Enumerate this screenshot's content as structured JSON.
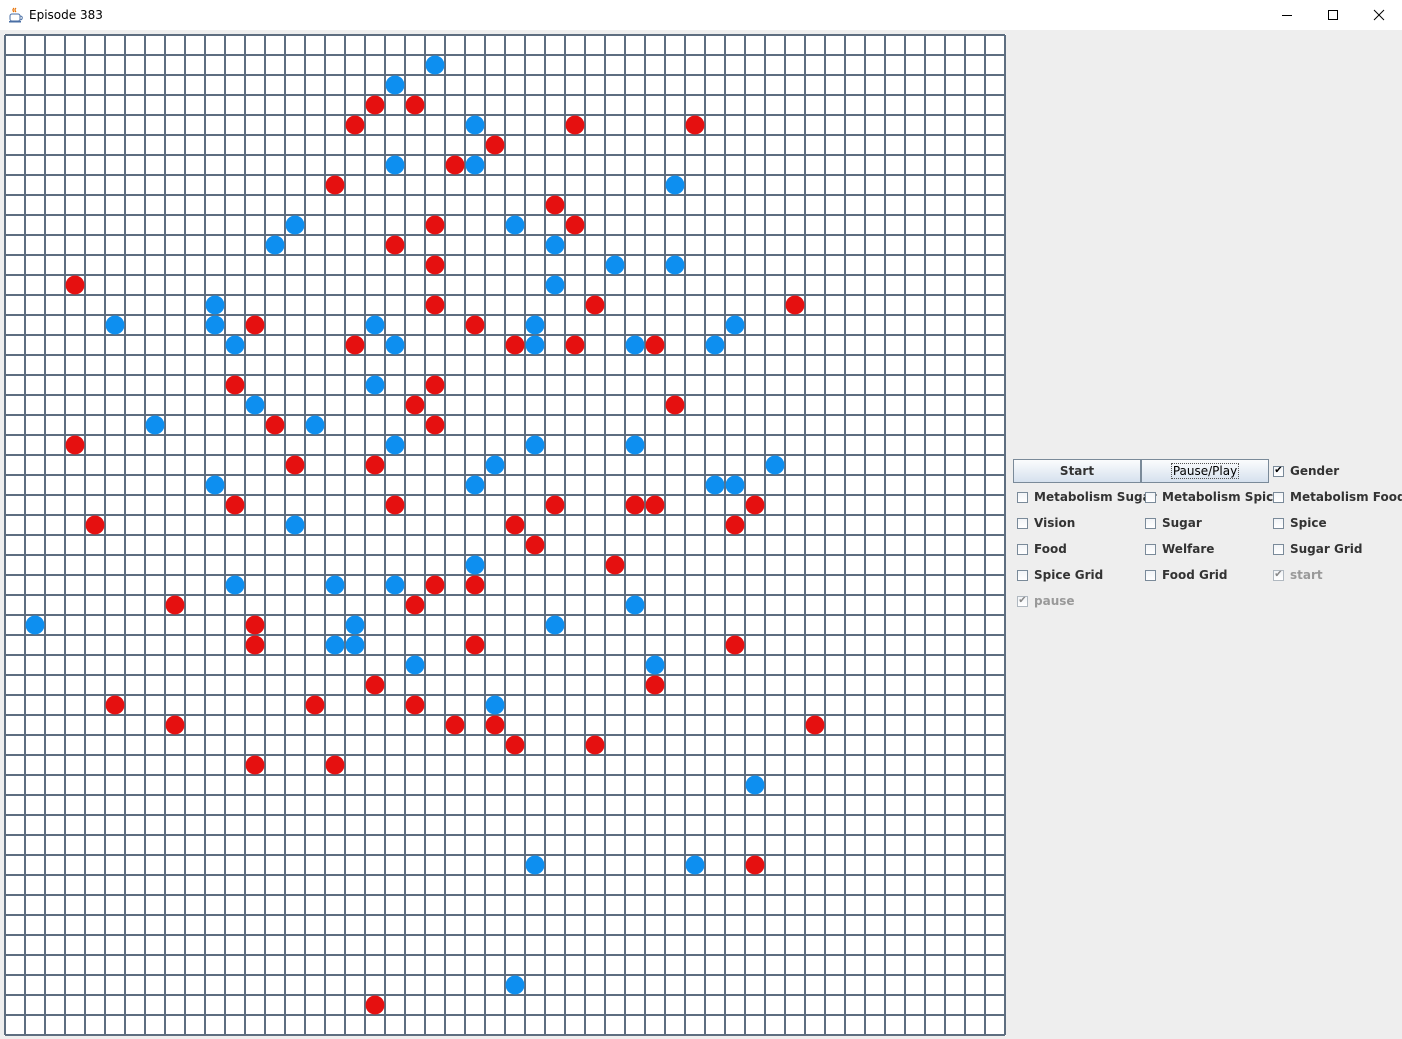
{
  "window": {
    "title": "Episode 383",
    "icon": "java-cup-icon",
    "controls": [
      "minimize-icon",
      "maximize-icon",
      "close-icon"
    ]
  },
  "grid": {
    "rows": 50,
    "cols": 50,
    "colors": {
      "background": "#ffffff",
      "lines": "#5e6e80",
      "agent_blue": "#0d8ff0",
      "agent_red": "#e51010"
    },
    "agents": [
      {
        "c": 21,
        "r": 1,
        "color": "blue"
      },
      {
        "c": 19,
        "r": 2,
        "color": "blue"
      },
      {
        "c": 18,
        "r": 3,
        "color": "red"
      },
      {
        "c": 20,
        "r": 3,
        "color": "red"
      },
      {
        "c": 17,
        "r": 4,
        "color": "red"
      },
      {
        "c": 23,
        "r": 4,
        "color": "blue"
      },
      {
        "c": 28,
        "r": 4,
        "color": "red"
      },
      {
        "c": 34,
        "r": 4,
        "color": "red"
      },
      {
        "c": 24,
        "r": 5,
        "color": "red"
      },
      {
        "c": 19,
        "r": 6,
        "color": "blue"
      },
      {
        "c": 22,
        "r": 6,
        "color": "red"
      },
      {
        "c": 23,
        "r": 6,
        "color": "blue"
      },
      {
        "c": 16,
        "r": 7,
        "color": "red"
      },
      {
        "c": 33,
        "r": 7,
        "color": "blue"
      },
      {
        "c": 27,
        "r": 8,
        "color": "red"
      },
      {
        "c": 14,
        "r": 9,
        "color": "blue"
      },
      {
        "c": 21,
        "r": 9,
        "color": "red"
      },
      {
        "c": 25,
        "r": 9,
        "color": "blue"
      },
      {
        "c": 28,
        "r": 9,
        "color": "red"
      },
      {
        "c": 13,
        "r": 10,
        "color": "blue"
      },
      {
        "c": 19,
        "r": 10,
        "color": "red"
      },
      {
        "c": 27,
        "r": 10,
        "color": "blue"
      },
      {
        "c": 21,
        "r": 11,
        "color": "red"
      },
      {
        "c": 30,
        "r": 11,
        "color": "blue"
      },
      {
        "c": 33,
        "r": 11,
        "color": "blue"
      },
      {
        "c": 3,
        "r": 12,
        "color": "red"
      },
      {
        "c": 27,
        "r": 12,
        "color": "blue"
      },
      {
        "c": 10,
        "r": 13,
        "color": "blue"
      },
      {
        "c": 21,
        "r": 13,
        "color": "red"
      },
      {
        "c": 29,
        "r": 13,
        "color": "red"
      },
      {
        "c": 39,
        "r": 13,
        "color": "red"
      },
      {
        "c": 5,
        "r": 14,
        "color": "blue"
      },
      {
        "c": 10,
        "r": 14,
        "color": "blue"
      },
      {
        "c": 12,
        "r": 14,
        "color": "red"
      },
      {
        "c": 18,
        "r": 14,
        "color": "blue"
      },
      {
        "c": 23,
        "r": 14,
        "color": "red"
      },
      {
        "c": 26,
        "r": 14,
        "color": "blue"
      },
      {
        "c": 36,
        "r": 14,
        "color": "blue"
      },
      {
        "c": 11,
        "r": 15,
        "color": "blue"
      },
      {
        "c": 17,
        "r": 15,
        "color": "red"
      },
      {
        "c": 19,
        "r": 15,
        "color": "blue"
      },
      {
        "c": 25,
        "r": 15,
        "color": "red"
      },
      {
        "c": 26,
        "r": 15,
        "color": "blue"
      },
      {
        "c": 28,
        "r": 15,
        "color": "red"
      },
      {
        "c": 31,
        "r": 15,
        "color": "blue"
      },
      {
        "c": 32,
        "r": 15,
        "color": "red"
      },
      {
        "c": 35,
        "r": 15,
        "color": "blue"
      },
      {
        "c": 11,
        "r": 17,
        "color": "red"
      },
      {
        "c": 18,
        "r": 17,
        "color": "blue"
      },
      {
        "c": 21,
        "r": 17,
        "color": "red"
      },
      {
        "c": 12,
        "r": 18,
        "color": "blue"
      },
      {
        "c": 20,
        "r": 18,
        "color": "red"
      },
      {
        "c": 33,
        "r": 18,
        "color": "red"
      },
      {
        "c": 7,
        "r": 19,
        "color": "blue"
      },
      {
        "c": 13,
        "r": 19,
        "color": "red"
      },
      {
        "c": 15,
        "r": 19,
        "color": "blue"
      },
      {
        "c": 21,
        "r": 19,
        "color": "red"
      },
      {
        "c": 3,
        "r": 20,
        "color": "red"
      },
      {
        "c": 19,
        "r": 20,
        "color": "blue"
      },
      {
        "c": 26,
        "r": 20,
        "color": "blue"
      },
      {
        "c": 31,
        "r": 20,
        "color": "blue"
      },
      {
        "c": 14,
        "r": 21,
        "color": "red"
      },
      {
        "c": 18,
        "r": 21,
        "color": "red"
      },
      {
        "c": 24,
        "r": 21,
        "color": "blue"
      },
      {
        "c": 38,
        "r": 21,
        "color": "blue"
      },
      {
        "c": 10,
        "r": 22,
        "color": "blue"
      },
      {
        "c": 23,
        "r": 22,
        "color": "blue"
      },
      {
        "c": 35,
        "r": 22,
        "color": "blue"
      },
      {
        "c": 36,
        "r": 22,
        "color": "blue"
      },
      {
        "c": 11,
        "r": 23,
        "color": "red"
      },
      {
        "c": 19,
        "r": 23,
        "color": "red"
      },
      {
        "c": 27,
        "r": 23,
        "color": "red"
      },
      {
        "c": 31,
        "r": 23,
        "color": "red"
      },
      {
        "c": 32,
        "r": 23,
        "color": "red"
      },
      {
        "c": 37,
        "r": 23,
        "color": "red"
      },
      {
        "c": 4,
        "r": 24,
        "color": "red"
      },
      {
        "c": 14,
        "r": 24,
        "color": "blue"
      },
      {
        "c": 25,
        "r": 24,
        "color": "red"
      },
      {
        "c": 36,
        "r": 24,
        "color": "red"
      },
      {
        "c": 26,
        "r": 25,
        "color": "red"
      },
      {
        "c": 23,
        "r": 26,
        "color": "blue"
      },
      {
        "c": 30,
        "r": 26,
        "color": "red"
      },
      {
        "c": 11,
        "r": 27,
        "color": "blue"
      },
      {
        "c": 16,
        "r": 27,
        "color": "blue"
      },
      {
        "c": 19,
        "r": 27,
        "color": "blue"
      },
      {
        "c": 21,
        "r": 27,
        "color": "red"
      },
      {
        "c": 23,
        "r": 27,
        "color": "red"
      },
      {
        "c": 8,
        "r": 28,
        "color": "red"
      },
      {
        "c": 20,
        "r": 28,
        "color": "red"
      },
      {
        "c": 31,
        "r": 28,
        "color": "blue"
      },
      {
        "c": 1,
        "r": 29,
        "color": "blue"
      },
      {
        "c": 12,
        "r": 29,
        "color": "red"
      },
      {
        "c": 17,
        "r": 29,
        "color": "blue"
      },
      {
        "c": 27,
        "r": 29,
        "color": "blue"
      },
      {
        "c": 12,
        "r": 30,
        "color": "red"
      },
      {
        "c": 16,
        "r": 30,
        "color": "blue"
      },
      {
        "c": 17,
        "r": 30,
        "color": "blue"
      },
      {
        "c": 23,
        "r": 30,
        "color": "red"
      },
      {
        "c": 36,
        "r": 30,
        "color": "red"
      },
      {
        "c": 20,
        "r": 31,
        "color": "blue"
      },
      {
        "c": 32,
        "r": 31,
        "color": "blue"
      },
      {
        "c": 18,
        "r": 32,
        "color": "red"
      },
      {
        "c": 32,
        "r": 32,
        "color": "red"
      },
      {
        "c": 5,
        "r": 33,
        "color": "red"
      },
      {
        "c": 15,
        "r": 33,
        "color": "red"
      },
      {
        "c": 20,
        "r": 33,
        "color": "red"
      },
      {
        "c": 24,
        "r": 33,
        "color": "blue"
      },
      {
        "c": 8,
        "r": 34,
        "color": "red"
      },
      {
        "c": 22,
        "r": 34,
        "color": "red"
      },
      {
        "c": 24,
        "r": 34,
        "color": "red"
      },
      {
        "c": 40,
        "r": 34,
        "color": "red"
      },
      {
        "c": 25,
        "r": 35,
        "color": "red"
      },
      {
        "c": 29,
        "r": 35,
        "color": "red"
      },
      {
        "c": 12,
        "r": 36,
        "color": "red"
      },
      {
        "c": 16,
        "r": 36,
        "color": "red"
      },
      {
        "c": 37,
        "r": 37,
        "color": "blue"
      },
      {
        "c": 26,
        "r": 41,
        "color": "blue"
      },
      {
        "c": 34,
        "r": 41,
        "color": "blue"
      },
      {
        "c": 37,
        "r": 41,
        "color": "red"
      },
      {
        "c": 25,
        "r": 47,
        "color": "blue"
      },
      {
        "c": 18,
        "r": 48,
        "color": "red"
      }
    ]
  },
  "controls": {
    "buttons": {
      "start_label": "Start",
      "pause_play_label": "Pause/Play"
    },
    "checkboxes": {
      "gender": {
        "label": "Gender",
        "checked": true,
        "enabled": true
      },
      "metabolism_sugar": {
        "label": "Metabolism Sugar",
        "checked": false,
        "enabled": true
      },
      "metabolism_spice": {
        "label": "Metabolism Spice",
        "checked": false,
        "enabled": true
      },
      "metabolism_food": {
        "label": "Metabolism Food",
        "checked": false,
        "enabled": true
      },
      "vision": {
        "label": "Vision",
        "checked": false,
        "enabled": true
      },
      "sugar": {
        "label": "Sugar",
        "checked": false,
        "enabled": true
      },
      "spice": {
        "label": "Spice",
        "checked": false,
        "enabled": true
      },
      "food": {
        "label": "Food",
        "checked": false,
        "enabled": true
      },
      "welfare": {
        "label": "Welfare",
        "checked": false,
        "enabled": true
      },
      "sugar_grid": {
        "label": "Sugar Grid",
        "checked": false,
        "enabled": true
      },
      "spice_grid": {
        "label": "Spice Grid",
        "checked": false,
        "enabled": true
      },
      "food_grid": {
        "label": "Food Grid",
        "checked": false,
        "enabled": true
      },
      "start": {
        "label": "start",
        "checked": true,
        "enabled": false
      },
      "pause": {
        "label": "pause",
        "checked": true,
        "enabled": false
      }
    }
  }
}
